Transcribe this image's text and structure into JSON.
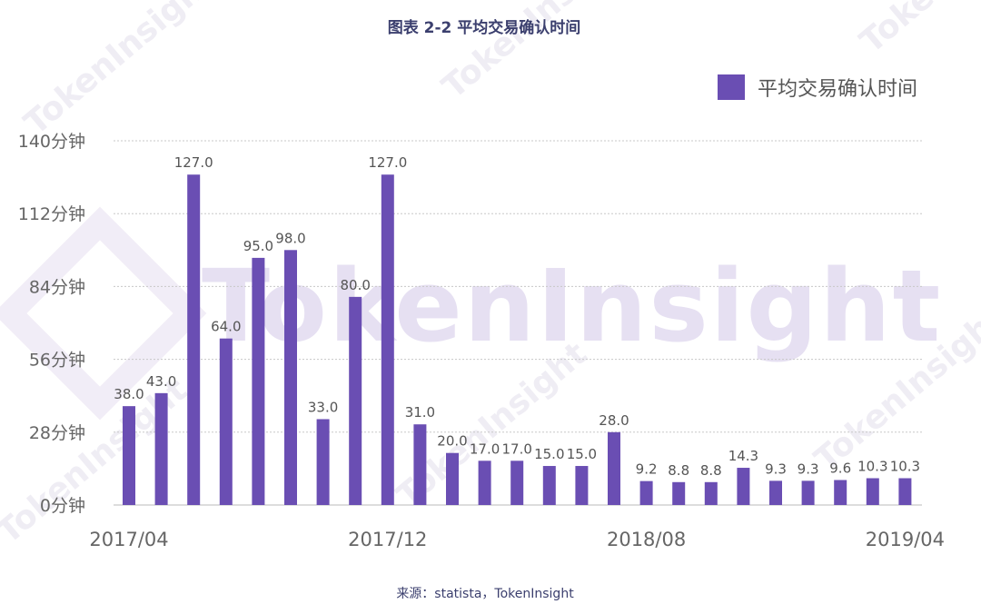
{
  "watermark": "TokenInsight",
  "source": "来源：statista，TokenInsight",
  "colors": {
    "bar": "#6a4eb3",
    "title": "#3b3f6e",
    "grid": "#c8c8c8"
  },
  "chart_data": {
    "type": "bar",
    "title": "图表 2-2 平均交易确认时间",
    "legend": [
      "平均交易确认时间"
    ],
    "legend_position": "top-right",
    "series": [
      {
        "name": "平均交易确认时间",
        "values": [
          38.0,
          43.0,
          127.0,
          64.0,
          95.0,
          98.0,
          33.0,
          80.0,
          127.0,
          31.0,
          20.0,
          17.0,
          17.0,
          15.0,
          15.0,
          28.0,
          9.2,
          8.8,
          8.8,
          14.3,
          9.3,
          9.3,
          9.6,
          10.3,
          10.3
        ],
        "labels": [
          "38.0",
          "43.0",
          "127.0",
          "64.0",
          "95.0",
          "98.0",
          "33.0",
          "80.0",
          "127.0",
          "31.0",
          "20.0",
          "17.0",
          "17.0",
          "15.0",
          "15.0",
          "28.0",
          "9.2",
          "8.8",
          "8.8",
          "14.3",
          "9.3",
          "9.3",
          "9.6",
          "10.3",
          "10.3"
        ]
      }
    ],
    "x_tick_labels": [
      "2017/04",
      "2017/12",
      "2018/08",
      "2019/04"
    ],
    "y_ticks": [
      "0分钟",
      "28分钟",
      "56分钟",
      "84分钟",
      "112分钟",
      "140分钟"
    ],
    "y_tick_values": [
      0,
      28,
      56,
      84,
      112,
      140
    ],
    "ylim": [
      0,
      140
    ],
    "grid": true,
    "xlabel": "",
    "ylabel": ""
  }
}
